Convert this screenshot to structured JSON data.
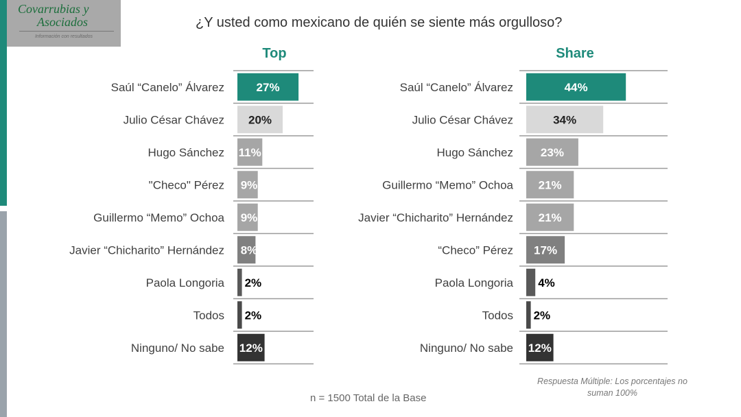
{
  "logo": {
    "line1": "Covarrubias y",
    "line2": "Asociados",
    "tagline": "Información con resultados"
  },
  "title": "¿Y usted como mexicano de quién se siente más orgulloso?",
  "footnote_base": "n = 1500 Total de la Base",
  "footnote_multiple": "Respuesta Múltiple: Los porcentajes no suman 100%",
  "colors": {
    "accent": "#1e8a7a",
    "light": "#d9d9d9",
    "mid": "#a6a6a6",
    "darker": "#808080",
    "dark": "#595959",
    "darkest": "#333333"
  },
  "chart_data": [
    {
      "type": "bar",
      "orientation": "horizontal",
      "title": "Top",
      "categories": [
        "Saúl “Canelo” Álvarez",
        "Julio César Chávez",
        "Hugo Sánchez",
        "\"Checo\" Pérez",
        "Guillermo “Memo” Ochoa",
        "Javier “Chicharito” Hernández",
        "Paola Longoria",
        "Todos",
        "Ninguno/ No sabe"
      ],
      "values": [
        27,
        20,
        11,
        9,
        9,
        8,
        2,
        2,
        12
      ],
      "labels": [
        "27%",
        "20%",
        "11%",
        "9%",
        "9%",
        "8%",
        "2%",
        "2%",
        "12%"
      ],
      "bar_colors": [
        "#1e8a7a",
        "#d9d9d9",
        "#a6a6a6",
        "#a6a6a6",
        "#a6a6a6",
        "#808080",
        "#595959",
        "#4a4a4a",
        "#333333"
      ],
      "label_colors": [
        "#ffffff",
        "#222222",
        "#ffffff",
        "#ffffff",
        "#ffffff",
        "#ffffff",
        "#000000",
        "#000000",
        "#ffffff"
      ],
      "unit": "%"
    },
    {
      "type": "bar",
      "orientation": "horizontal",
      "title": "Share",
      "categories": [
        "Saúl “Canelo” Álvarez",
        "Julio César Chávez",
        "Hugo Sánchez",
        "Guillermo “Memo” Ochoa",
        "Javier “Chicharito” Hernández",
        "“Checo” Pérez",
        "Paola Longoria",
        "Todos",
        "Ninguno/ No sabe"
      ],
      "values": [
        44,
        34,
        23,
        21,
        21,
        17,
        4,
        2,
        12
      ],
      "labels": [
        "44%",
        "34%",
        "23%",
        "21%",
        "21%",
        "17%",
        "4%",
        "2%",
        "12%"
      ],
      "bar_colors": [
        "#1e8a7a",
        "#d9d9d9",
        "#a6a6a6",
        "#a6a6a6",
        "#a6a6a6",
        "#808080",
        "#595959",
        "#4a4a4a",
        "#333333"
      ],
      "label_colors": [
        "#ffffff",
        "#222222",
        "#ffffff",
        "#ffffff",
        "#ffffff",
        "#ffffff",
        "#000000",
        "#000000",
        "#ffffff"
      ],
      "unit": "%"
    }
  ]
}
